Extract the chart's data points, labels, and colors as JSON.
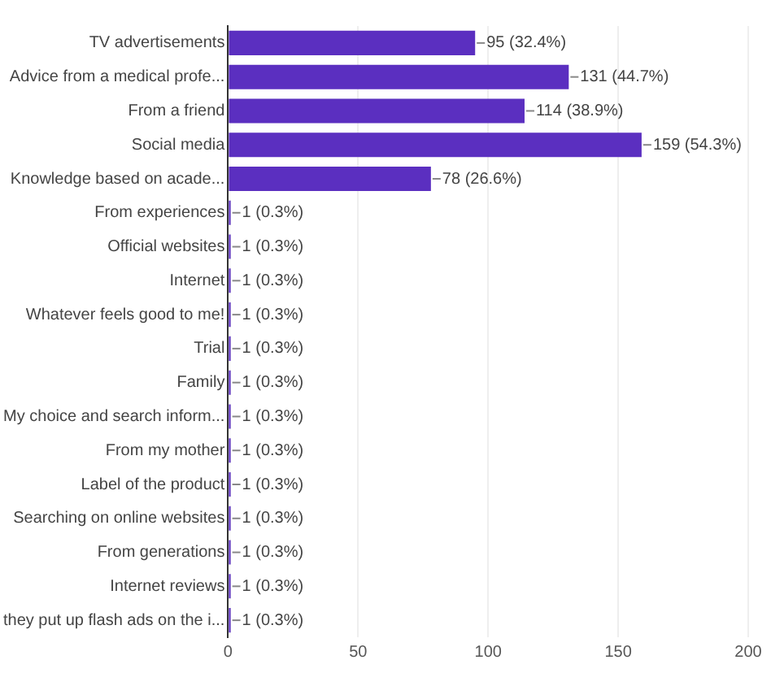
{
  "chart_data": {
    "type": "bar",
    "orientation": "horizontal",
    "categories": [
      "TV advertisements",
      "Advice from a medical profe...",
      "From a friend",
      "Social media",
      "Knowledge based on acade...",
      "From experiences",
      "Official websites",
      "Internet",
      "Whatever feels good to me!",
      "Trial",
      "Family",
      "My choice and search inform...",
      "From my mother",
      "Label of the product",
      "Searching on online websites",
      "From generations",
      "Internet reviews",
      "they put up flash ads on the i..."
    ],
    "values": [
      95,
      131,
      114,
      159,
      78,
      1,
      1,
      1,
      1,
      1,
      1,
      1,
      1,
      1,
      1,
      1,
      1,
      1
    ],
    "value_labels": [
      "95 (32.4%)",
      "131 (44.7%)",
      "114 (38.9%)",
      "159 (54.3%)",
      "78 (26.6%)",
      "1 (0.3%)",
      "1 (0.3%)",
      "1 (0.3%)",
      "1 (0.3%)",
      "1 (0.3%)",
      "1 (0.3%)",
      "1 (0.3%)",
      "1 (0.3%)",
      "1 (0.3%)",
      "1 (0.3%)",
      "1 (0.3%)",
      "1 (0.3%)",
      "1 (0.3%)"
    ],
    "color": "#5b2fc0",
    "xlim": [
      0,
      200
    ],
    "xticks": [
      0,
      50,
      100,
      150,
      200
    ],
    "grid": "x"
  }
}
